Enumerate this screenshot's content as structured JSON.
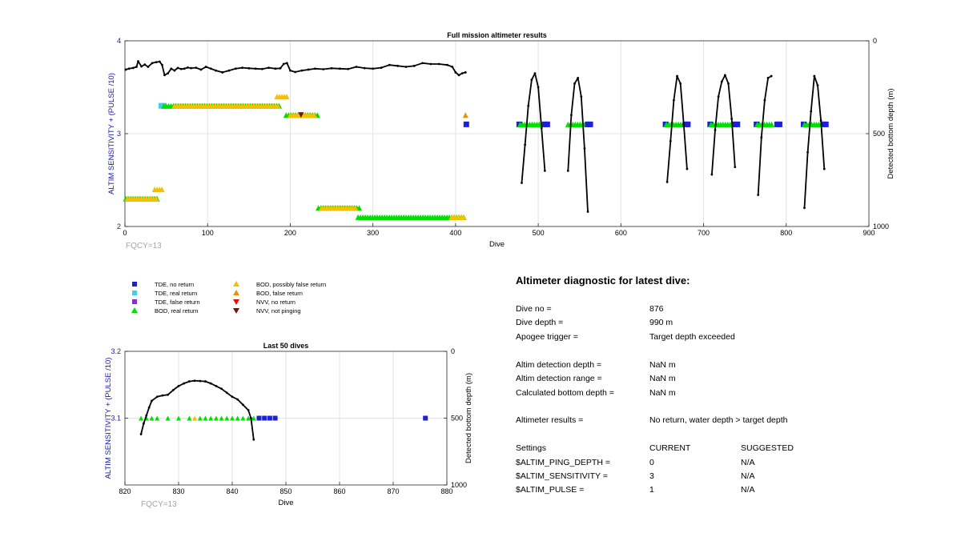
{
  "colors": {
    "tde_no_return": "#1f1fd6",
    "tde_real_return": "#3cd0f0",
    "tde_false_return": "#8a2be2",
    "bod_real_return": "#00e000",
    "bod_possibly_false": "#f5c000",
    "bod_false_return": "#e8920c",
    "nvv_no_return": "#e01010",
    "nvv_not_pinging": "#7a1010",
    "axis_left_label": "#1a1aa8",
    "fqcy": "#a6a6a6"
  },
  "legend": [
    {
      "marker": "square",
      "color_key": "tde_no_return",
      "label": "TDE, no return"
    },
    {
      "marker": "square",
      "color_key": "tde_real_return",
      "label": "TDE, real return"
    },
    {
      "marker": "square",
      "color_key": "tde_false_return",
      "label": "TDE, false return"
    },
    {
      "marker": "triangle-up",
      "color_key": "bod_real_return",
      "label": "BOD, real return"
    },
    {
      "marker": "triangle-up",
      "color_key": "bod_possibly_false",
      "label": "BOD, possibly false return"
    },
    {
      "marker": "triangle-up",
      "color_key": "bod_false_return",
      "label": "BOD, false return"
    },
    {
      "marker": "triangle-down",
      "color_key": "nvv_no_return",
      "label": "NVV, no return"
    },
    {
      "marker": "triangle-down",
      "color_key": "nvv_not_pinging",
      "label": "NVV, not pinging"
    }
  ],
  "chart_data": [
    {
      "id": "full",
      "type": "scatter",
      "title": "Full mission altimeter results",
      "xlabel": "Dive",
      "ylabel": "ALTIM SENSITIVITY + (PULSE /10)",
      "y2label": "Detected bottom depth (m)",
      "xlim": [
        0,
        900
      ],
      "ylim": [
        2,
        4
      ],
      "y2lim": [
        0,
        1000
      ],
      "y2_reversed": true,
      "xticks": [
        0,
        100,
        200,
        300,
        400,
        500,
        600,
        700,
        800,
        900
      ],
      "yticks": [
        2,
        3,
        4
      ],
      "y2ticks": [
        0,
        500,
        1000
      ],
      "grid": true,
      "annotation": "FQCY=13",
      "markers": [
        {
          "type": "bod_real",
          "x0": 1,
          "x1": 40,
          "y": 2.3
        },
        {
          "type": "bod_possibly_false",
          "x0": 3,
          "x1": 38,
          "y": 2.3
        },
        {
          "type": "bod_possibly_false",
          "x0": 36,
          "x1": 46,
          "y": 2.4
        },
        {
          "type": "tde_real",
          "x0": 44,
          "x1": 48,
          "y": 3.3
        },
        {
          "type": "bod_real",
          "x0": 47,
          "x1": 188,
          "y": 3.3
        },
        {
          "type": "bod_possibly_false",
          "x0": 60,
          "x1": 185,
          "y": 3.3
        },
        {
          "type": "bod_possibly_false",
          "x0": 184,
          "x1": 198,
          "y": 3.4
        },
        {
          "type": "bod_real",
          "x0": 195,
          "x1": 233,
          "y": 3.2
        },
        {
          "type": "bod_possibly_false",
          "x0": 200,
          "x1": 230,
          "y": 3.2
        },
        {
          "type": "nvv_not_pinging",
          "x0": 213,
          "x1": 213,
          "y": 3.2
        },
        {
          "type": "bod_real",
          "x0": 234,
          "x1": 284,
          "y": 2.2
        },
        {
          "type": "bod_possibly_false",
          "x0": 238,
          "x1": 280,
          "y": 2.2
        },
        {
          "type": "bod_real",
          "x0": 282,
          "x1": 410,
          "y": 2.1
        },
        {
          "type": "bod_possibly_false",
          "x0": 395,
          "x1": 412,
          "y": 2.1
        },
        {
          "type": "bod_false",
          "x0": 412,
          "x1": 412,
          "y": 3.2
        },
        {
          "type": "tde_no",
          "x0": 413,
          "x1": 413,
          "y": 3.1
        },
        {
          "type": "tde_no",
          "x0": 476,
          "x1": 478,
          "y": 3.1
        },
        {
          "type": "bod_real",
          "x0": 478,
          "x1": 508,
          "y": 3.1
        },
        {
          "type": "tde_no",
          "x0": 508,
          "x1": 512,
          "y": 3.1
        },
        {
          "type": "bod_real",
          "x0": 536,
          "x1": 560,
          "y": 3.1
        },
        {
          "type": "tde_no",
          "x0": 560,
          "x1": 564,
          "y": 3.1
        },
        {
          "type": "tde_no",
          "x0": 653,
          "x1": 655,
          "y": 3.1
        },
        {
          "type": "bod_real",
          "x0": 655,
          "x1": 678,
          "y": 3.1
        },
        {
          "type": "tde_no",
          "x0": 678,
          "x1": 683,
          "y": 3.1
        },
        {
          "type": "tde_no",
          "x0": 707,
          "x1": 709,
          "y": 3.1
        },
        {
          "type": "bod_real",
          "x0": 709,
          "x1": 738,
          "y": 3.1
        },
        {
          "type": "tde_no",
          "x0": 738,
          "x1": 743,
          "y": 3.1
        },
        {
          "type": "tde_no",
          "x0": 763,
          "x1": 765,
          "y": 3.1
        },
        {
          "type": "bod_real",
          "x0": 765,
          "x1": 783,
          "y": 3.1
        },
        {
          "type": "tde_no",
          "x0": 789,
          "x1": 792,
          "y": 3.1
        },
        {
          "type": "tde_no",
          "x0": 820,
          "x1": 822,
          "y": 3.1
        },
        {
          "type": "bod_real",
          "x0": 822,
          "x1": 844,
          "y": 3.1
        },
        {
          "type": "tde_no",
          "x0": 845,
          "x1": 848,
          "y": 3.1
        }
      ],
      "depth_series": [
        {
          "x": [
            1,
            5,
            10,
            14,
            16,
            20,
            24,
            28,
            33,
            38,
            42,
            45,
            48,
            52,
            56,
            60,
            64,
            68,
            72,
            76,
            80,
            86,
            92,
            98,
            104,
            110,
            118,
            126,
            134,
            142,
            150,
            158,
            166,
            174,
            182,
            188,
            192,
            196,
            200,
            206,
            214,
            222,
            230,
            240,
            250,
            260,
            270,
            280,
            290,
            300,
            310,
            320,
            330,
            340,
            350,
            360,
            370,
            380,
            390,
            396,
            400,
            404,
            408,
            412
          ],
          "y": [
            155,
            150,
            146,
            140,
            110,
            138,
            128,
            140,
            120,
            115,
            112,
            130,
            185,
            175,
            150,
            160,
            146,
            152,
            150,
            144,
            147,
            145,
            155,
            140,
            150,
            160,
            170,
            160,
            150,
            145,
            148,
            150,
            152,
            145,
            150,
            148,
            125,
            120,
            160,
            168,
            160,
            155,
            150,
            153,
            148,
            150,
            152,
            140,
            147,
            150,
            145,
            130,
            135,
            140,
            135,
            120,
            125,
            125,
            130,
            140,
            170,
            185,
            175,
            170
          ]
        },
        {
          "x": [
            480,
            484,
            488,
            492,
            496,
            500,
            504,
            508
          ],
          "y": [
            765,
            560,
            350,
            210,
            175,
            250,
            470,
            700
          ]
        },
        {
          "x": [
            536,
            540,
            544,
            548,
            552,
            556,
            560
          ],
          "y": [
            700,
            400,
            230,
            200,
            300,
            580,
            920
          ]
        },
        {
          "x": [
            656,
            660,
            664,
            668,
            672,
            676,
            680
          ],
          "y": [
            760,
            540,
            320,
            190,
            230,
            450,
            690
          ]
        },
        {
          "x": [
            710,
            714,
            718,
            722,
            726,
            730,
            734,
            738
          ],
          "y": [
            720,
            480,
            300,
            220,
            185,
            230,
            420,
            680
          ]
        },
        {
          "x": [
            766,
            770,
            774,
            778,
            782
          ],
          "y": [
            830,
            520,
            320,
            200,
            190
          ]
        },
        {
          "x": [
            822,
            826,
            830,
            834,
            838,
            842,
            846
          ],
          "y": [
            900,
            600,
            380,
            190,
            240,
            430,
            690
          ]
        }
      ]
    },
    {
      "id": "last50",
      "type": "scatter",
      "title": "Last 50 dives",
      "xlabel": "Dive",
      "ylabel": "ALTIM SENSITIVITY + (PULSE /10)",
      "y2label": "Detected bottom depth (m)",
      "xlim": [
        820,
        880
      ],
      "ylim": [
        3,
        3.2
      ],
      "y2lim": [
        0,
        1000
      ],
      "y2_reversed": true,
      "xticks": [
        820,
        830,
        840,
        850,
        860,
        870,
        880
      ],
      "yticks": [
        3.1,
        3.2
      ],
      "y2ticks": [
        0,
        500,
        1000
      ],
      "grid": true,
      "annotation": "FQCY=13",
      "markers": [
        {
          "type": "bod_real",
          "x": [
            823,
            824,
            825,
            826,
            828,
            830,
            832,
            834,
            835,
            836,
            837,
            838,
            839,
            840,
            841,
            842,
            843,
            844
          ],
          "y": 3.1
        },
        {
          "type": "bod_possibly_false",
          "x": [
            833
          ],
          "y": 3.1
        },
        {
          "type": "tde_no",
          "x": [
            845,
            846,
            847,
            848,
            876
          ],
          "y": 3.1
        }
      ],
      "depth_series": [
        {
          "x": [
            823,
            823.5,
            824,
            824.5,
            825,
            826,
            827,
            828,
            829,
            830,
            831,
            832,
            833,
            834,
            835,
            836,
            837,
            838,
            839,
            840,
            841,
            842,
            843,
            843.5,
            844
          ],
          "y": [
            620,
            540,
            480,
            420,
            370,
            340,
            330,
            325,
            290,
            260,
            240,
            225,
            220,
            222,
            225,
            240,
            260,
            280,
            310,
            340,
            360,
            400,
            440,
            500,
            660
          ]
        }
      ]
    }
  ],
  "diagnostic": {
    "title": "Altimeter diagnostic for latest dive:",
    "rows": [
      {
        "label": "Dive no =",
        "value": "876"
      },
      {
        "label": "Dive depth =",
        "value": "990 m"
      },
      {
        "label": "Apogee trigger =",
        "value": "Target depth exceeded"
      },
      {
        "label": "Altim detection depth =",
        "value": "NaN m"
      },
      {
        "label": "Altim detection range =",
        "value": "NaN m"
      },
      {
        "label": "Calculated bottom depth =",
        "value": "NaN m"
      },
      {
        "label": "Altimeter results =",
        "value": "No return, water depth > target depth"
      }
    ],
    "settings_header": {
      "label": "Settings",
      "current": "CURRENT",
      "suggested": "SUGGESTED"
    },
    "settings": [
      {
        "label": "$ALTIM_PING_DEPTH =",
        "current": "0",
        "suggested": "N/A"
      },
      {
        "label": "$ALTIM_SENSITIVITY =",
        "current": "3",
        "suggested": "N/A"
      },
      {
        "label": "$ALTIM_PULSE =",
        "current": "1",
        "suggested": "N/A"
      }
    ]
  }
}
